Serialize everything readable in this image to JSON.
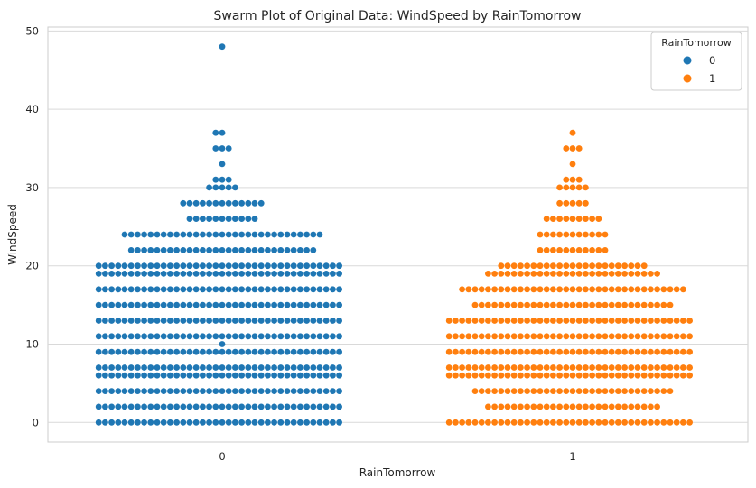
{
  "chart_data": {
    "type": "scatter",
    "subtype": "swarm",
    "title": "Swarm Plot of Original Data: WindSpeed by RainTomorrow",
    "xlabel": "RainTomorrow",
    "ylabel": "WindSpeed",
    "categories": [
      "0",
      "1"
    ],
    "ylim": [
      -2.5,
      50.5
    ],
    "yticks": [
      "0",
      "10",
      "20",
      "30",
      "40",
      "50"
    ],
    "grid": true,
    "legend": {
      "title": "RainTomorrow",
      "placement": "top-right",
      "entries": [
        "0",
        "1"
      ]
    },
    "colors": {
      "0": "#1f77b4",
      "1": "#ff7f0e"
    },
    "series": [
      {
        "name": "0",
        "category": "0",
        "points": [
          {
            "y": 0,
            "count": 38
          },
          {
            "y": 2,
            "count": 38
          },
          {
            "y": 4,
            "count": 38
          },
          {
            "y": 6,
            "count": 38
          },
          {
            "y": 7,
            "count": 38
          },
          {
            "y": 9,
            "count": 38
          },
          {
            "y": 10,
            "count": 1
          },
          {
            "y": 11,
            "count": 38
          },
          {
            "y": 13,
            "count": 38
          },
          {
            "y": 15,
            "count": 38
          },
          {
            "y": 17,
            "count": 38
          },
          {
            "y": 19,
            "count": 38
          },
          {
            "y": 20,
            "count": 38
          },
          {
            "y": 22,
            "count": 29
          },
          {
            "y": 24,
            "count": 31
          },
          {
            "y": 26,
            "count": 11
          },
          {
            "y": 28,
            "count": 13
          },
          {
            "y": 30,
            "count": 5
          },
          {
            "y": 31,
            "count": 3
          },
          {
            "y": 33,
            "count": 1
          },
          {
            "y": 35,
            "count": 3
          },
          {
            "y": 37,
            "count": 2
          },
          {
            "y": 48,
            "count": 1
          }
        ]
      },
      {
        "name": "1",
        "category": "1",
        "points": [
          {
            "y": 0,
            "count": 38
          },
          {
            "y": 2,
            "count": 27
          },
          {
            "y": 4,
            "count": 31
          },
          {
            "y": 6,
            "count": 38
          },
          {
            "y": 7,
            "count": 38
          },
          {
            "y": 9,
            "count": 38
          },
          {
            "y": 11,
            "count": 38
          },
          {
            "y": 13,
            "count": 38
          },
          {
            "y": 15,
            "count": 31
          },
          {
            "y": 17,
            "count": 35
          },
          {
            "y": 19,
            "count": 27
          },
          {
            "y": 20,
            "count": 23
          },
          {
            "y": 22,
            "count": 11
          },
          {
            "y": 24,
            "count": 11
          },
          {
            "y": 26,
            "count": 9
          },
          {
            "y": 28,
            "count": 5
          },
          {
            "y": 30,
            "count": 5
          },
          {
            "y": 31,
            "count": 3
          },
          {
            "y": 33,
            "count": 1
          },
          {
            "y": 35,
            "count": 3
          },
          {
            "y": 37,
            "count": 1
          }
        ]
      }
    ]
  }
}
